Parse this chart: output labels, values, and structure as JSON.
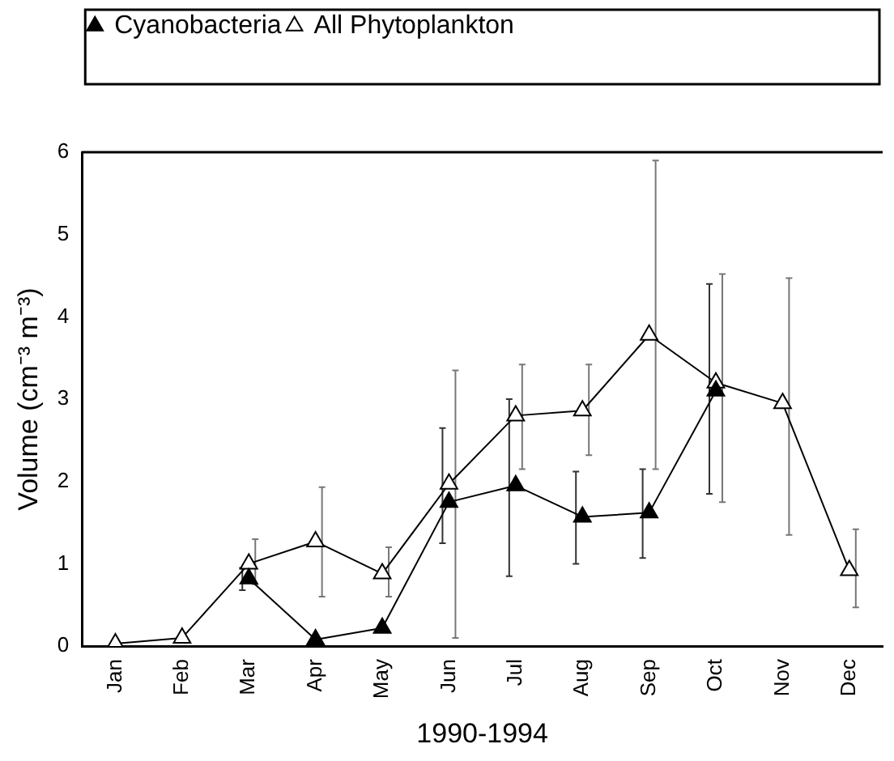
{
  "chart_data": {
    "type": "line",
    "xlabel": "1990-1994",
    "ylabel": "Volume (cm⁻³ m⁻³)",
    "categories": [
      "Jan",
      "Feb",
      "Mar",
      "Apr",
      "May",
      "Jun",
      "Jul",
      "Aug",
      "Sep",
      "Oct",
      "Nov",
      "Dec"
    ],
    "series": [
      {
        "name": "Cyanobacteria",
        "color": "#000000",
        "values": [
          null,
          null,
          0.82,
          0.08,
          0.22,
          1.75,
          1.95,
          1.57,
          1.62,
          3.1,
          null,
          null
        ],
        "errors": [
          null,
          null,
          [
            0.68,
            0.95
          ],
          null,
          null,
          [
            1.25,
            2.65
          ],
          [
            0.85,
            3.0
          ],
          [
            1.0,
            2.12
          ],
          [
            1.07,
            2.15
          ],
          [
            1.85,
            4.4
          ],
          null,
          null
        ]
      },
      {
        "name": "All Phytoplankton",
        "color": "#ffffff",
        "values": [
          0.03,
          0.1,
          1.0,
          1.27,
          0.88,
          1.97,
          2.8,
          2.86,
          3.78,
          3.2,
          2.95,
          0.92
        ],
        "errors": [
          null,
          null,
          [
            0.75,
            1.3
          ],
          [
            0.6,
            1.93
          ],
          [
            0.6,
            1.2
          ],
          [
            0.1,
            3.35
          ],
          [
            2.15,
            3.42
          ],
          [
            2.32,
            3.42
          ],
          [
            2.15,
            5.9
          ],
          [
            1.75,
            4.52
          ],
          [
            1.35,
            4.47
          ],
          [
            0.47,
            1.42
          ]
        ]
      }
    ],
    "ylim": [
      0,
      6
    ],
    "yticks": [
      0,
      1,
      2,
      3,
      4,
      5,
      6
    ],
    "grid": false,
    "legend": "top left",
    "marker": "triangle",
    "line_style": "solid"
  }
}
